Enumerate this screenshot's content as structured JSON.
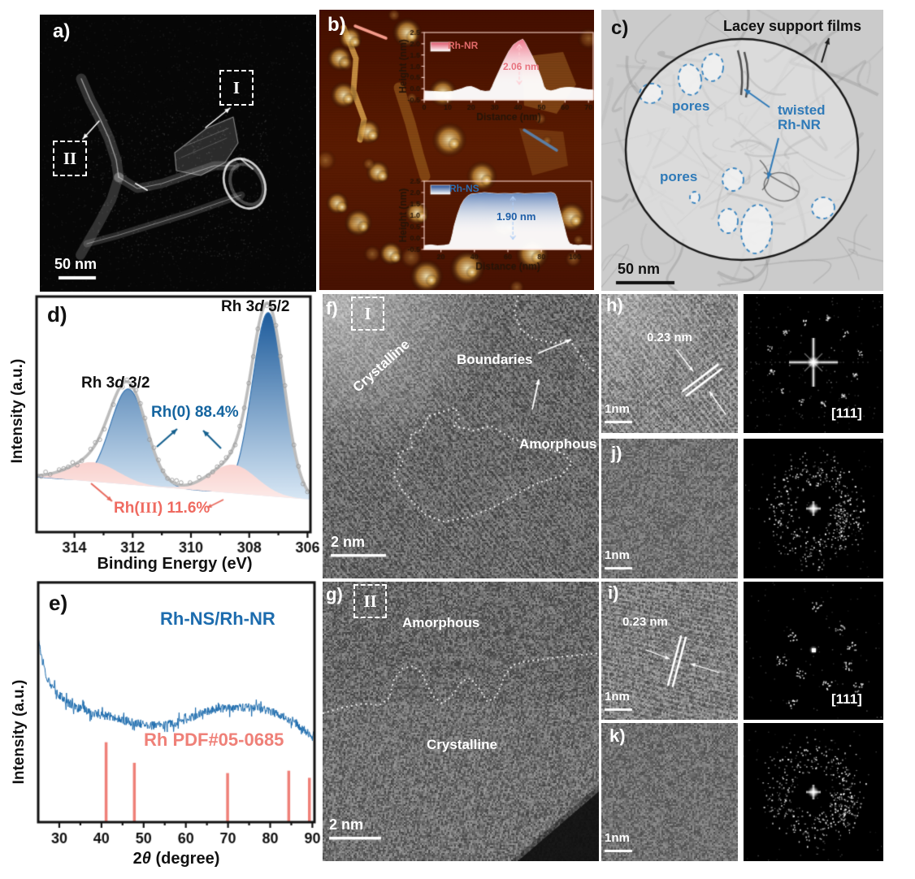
{
  "figure": {
    "background": "#ffffff",
    "description": "Multi-panel characterization figure of Rh nanosheet/nanoring structures"
  },
  "panels": {
    "a": {
      "label": "a)",
      "region_1": "I",
      "region_2": "II",
      "scalebar": "50 nm"
    },
    "b": {
      "label": "b)"
    },
    "c": {
      "label": "c)",
      "support_label": "Lacey support films",
      "pores_1": "pores",
      "pores_2": "pores",
      "twisted_line1": "twisted",
      "twisted_line2": "Rh-NR",
      "scalebar": "50 nm",
      "annotation_color": "#2f7ab8"
    },
    "d": {
      "label": "d)",
      "peak52_pre": "Rh 3",
      "peak52_it": "d",
      "peak52_post": " 5/2",
      "peak32_pre": "Rh 3",
      "peak32_it": "d",
      "peak32_post": " 3/2",
      "rh0_label": "Rh(0) 88.4%",
      "rh3_pre": "Rh(",
      "rh3_roman": "III",
      "rh3_post": ") 11.6%",
      "xlabel": "Binding Energy (eV)",
      "ylabel": "Intensity (a.u.)"
    },
    "e": {
      "label": "e)",
      "series_label": "Rh-NS/Rh-NR",
      "ref_label": "Rh PDF#05-0685",
      "xlabel_pre": "2",
      "xlabel_it": "θ",
      "xlabel_post": " (degree)",
      "ylabel": "Intensity (a.u.)"
    },
    "f": {
      "label": "f)",
      "region": "I",
      "crystalline": "Crystalline",
      "boundaries": "Boundaries",
      "amorphous": "Amorphous",
      "scalebar": "2 nm"
    },
    "g": {
      "label": "g)",
      "region": "II",
      "amorphous": "Amorphous",
      "crystalline": "Crystalline",
      "scalebar": "2 nm"
    },
    "h": {
      "label": "h)",
      "dspacing": "0.23 nm",
      "scalebar": "1nm",
      "fft_zone": "[111]"
    },
    "i": {
      "label": "i)",
      "dspacing": "0.23 nm",
      "scalebar": "1nm",
      "fft_zone": "[111]"
    },
    "j": {
      "label": "j)",
      "scalebar": "1nm"
    },
    "k": {
      "label": "k)",
      "scalebar": "1nm"
    }
  },
  "chart_data": [
    {
      "id": "afm-nr",
      "type": "area",
      "legend": "Rh-NR",
      "annotation": "2.06 nm",
      "xlabel": "Distance (nm)",
      "ylabel": "Height (nm)",
      "xlim": [
        0,
        72
      ],
      "ylim": [
        -0.5,
        2.5
      ],
      "xticks": [
        0,
        10,
        20,
        30,
        40,
        50,
        60,
        70
      ],
      "yticks": [
        -0.5,
        0.0,
        0.5,
        1.0,
        1.5,
        2.0,
        2.5
      ],
      "profile": [
        [
          0,
          -0.1
        ],
        [
          4,
          -0.12
        ],
        [
          8,
          -0.15
        ],
        [
          12,
          -0.12
        ],
        [
          16,
          0.0
        ],
        [
          18,
          0.08
        ],
        [
          20,
          0.1
        ],
        [
          22,
          0.02
        ],
        [
          24,
          -0.08
        ],
        [
          26,
          -0.12
        ],
        [
          28,
          -0.1
        ],
        [
          29,
          0.1
        ],
        [
          30,
          0.35
        ],
        [
          32,
          0.8
        ],
        [
          34,
          1.25
        ],
        [
          36,
          1.65
        ],
        [
          38,
          1.95
        ],
        [
          40,
          2.1
        ],
        [
          42,
          2.2
        ],
        [
          43,
          2.05
        ],
        [
          44,
          1.85
        ],
        [
          46,
          1.45
        ],
        [
          48,
          1.0
        ],
        [
          50,
          0.45
        ],
        [
          51,
          0.1
        ],
        [
          52,
          -0.05
        ],
        [
          54,
          -0.1
        ],
        [
          56,
          -0.05
        ],
        [
          58,
          0.02
        ],
        [
          60,
          0.05
        ],
        [
          62,
          0.06
        ],
        [
          64,
          0.04
        ],
        [
          66,
          0.02
        ],
        [
          68,
          -0.02
        ],
        [
          70,
          -0.05
        ],
        [
          72,
          -0.06
        ]
      ],
      "peak_height_nm": 2.06,
      "peak_color": "#ee5a74",
      "text_color": "#e8737f",
      "legend_color": "#e26a6a"
    },
    {
      "id": "afm-ns",
      "type": "area",
      "legend": "Rh-NS",
      "annotation": "1.90 nm",
      "xlabel": "Distance (nm)",
      "ylabel": "Height (nm)",
      "xlim": [
        10,
        110
      ],
      "ylim": [
        -0.5,
        2.5
      ],
      "xticks": [
        20,
        40,
        60,
        80,
        100
      ],
      "yticks": [
        -0.5,
        0.0,
        0.5,
        1.0,
        1.5,
        2.0,
        2.5
      ],
      "profile": [
        [
          10,
          -0.33
        ],
        [
          14,
          -0.3
        ],
        [
          18,
          -0.34
        ],
        [
          22,
          -0.32
        ],
        [
          25,
          -0.28
        ],
        [
          26,
          -0.1
        ],
        [
          27,
          0.2
        ],
        [
          28,
          0.55
        ],
        [
          30,
          1.05
        ],
        [
          32,
          1.45
        ],
        [
          34,
          1.7
        ],
        [
          36,
          1.85
        ],
        [
          38,
          1.93
        ],
        [
          42,
          1.96
        ],
        [
          46,
          2.0
        ],
        [
          50,
          1.97
        ],
        [
          54,
          1.95
        ],
        [
          58,
          1.96
        ],
        [
          62,
          1.95
        ],
        [
          66,
          1.97
        ],
        [
          70,
          1.95
        ],
        [
          74,
          1.96
        ],
        [
          78,
          1.97
        ],
        [
          82,
          1.98
        ],
        [
          86,
          2.0
        ],
        [
          88,
          1.95
        ],
        [
          89,
          1.8
        ],
        [
          90,
          1.5
        ],
        [
          92,
          0.95
        ],
        [
          94,
          0.4
        ],
        [
          95,
          0.1
        ],
        [
          96,
          -0.12
        ],
        [
          97,
          -0.25
        ],
        [
          99,
          -0.3
        ],
        [
          102,
          -0.32
        ],
        [
          105,
          -0.3
        ],
        [
          108,
          -0.32
        ],
        [
          110,
          -0.33
        ]
      ],
      "step_height_nm": 1.9,
      "peak_color": "#1c4f9e",
      "text_color": "#1f5fa8",
      "legend_color": "#2d6cae"
    },
    {
      "id": "xps",
      "type": "area-peaks",
      "xlabel": "Binding Energy (eV)",
      "ylabel": "Intensity (a.u.)",
      "x_range": [
        315.3,
        305.9
      ],
      "xticks": [
        314,
        312,
        310,
        308,
        306
      ],
      "peaks": [
        {
          "name": "Rh(0) 3d5/2",
          "center": 307.35,
          "sigma": 0.55,
          "amp": 1.0,
          "group": "Rh0"
        },
        {
          "name": "Rh(0) 3d3/2",
          "center": 312.15,
          "sigma": 0.62,
          "amp": 0.52,
          "group": "Rh0"
        },
        {
          "name": "Rh(III) 3d5/2",
          "center": 308.55,
          "sigma": 0.8,
          "amp": 0.155,
          "group": "RhIII"
        },
        {
          "name": "Rh(III) 3d3/2",
          "center": 313.35,
          "sigma": 0.85,
          "amp": 0.105,
          "group": "RhIII"
        }
      ],
      "composition": {
        "Rh0_percent": 88.4,
        "RhIII_percent": 11.6
      },
      "annotations": {
        "rh0": "Rh(0) 88.4%",
        "rhIII": "Rh(III) 11.6%",
        "peak52": "Rh 3d 5/2",
        "peak32": "Rh 3d 3/2"
      },
      "colors": {
        "Rh0": "#1b5a9b",
        "Rh0_light": "#ddebf7",
        "RhIII": "#ed6a60",
        "RhIII_light": "#fdeeec",
        "envelope": "#bcbcbc",
        "outline": "#2f6fae"
      }
    },
    {
      "id": "xrd",
      "type": "line+sticks",
      "xlabel": "2θ (degree)",
      "ylabel": "Intensity (a.u.)",
      "x_range": [
        25,
        90.5
      ],
      "xticks": [
        30,
        40,
        50,
        60,
        70,
        80,
        90
      ],
      "series_label": "Rh-NS/Rh-NR",
      "ref_label": "Rh PDF#05-0685",
      "curve": [
        [
          25,
          0.78
        ],
        [
          26,
          0.67
        ],
        [
          27,
          0.61
        ],
        [
          28,
          0.575
        ],
        [
          29,
          0.55
        ],
        [
          30,
          0.53
        ],
        [
          31,
          0.515
        ],
        [
          32,
          0.5
        ],
        [
          33,
          0.49
        ],
        [
          34,
          0.48
        ],
        [
          35,
          0.472
        ],
        [
          36,
          0.47
        ],
        [
          37,
          0.462
        ],
        [
          38,
          0.455
        ],
        [
          39,
          0.45
        ],
        [
          40,
          0.445
        ],
        [
          41,
          0.445
        ],
        [
          42,
          0.44
        ],
        [
          43,
          0.435
        ],
        [
          44,
          0.43
        ],
        [
          45,
          0.425
        ],
        [
          46,
          0.422
        ],
        [
          47,
          0.418
        ],
        [
          48,
          0.413
        ],
        [
          49,
          0.41
        ],
        [
          50,
          0.408
        ],
        [
          51,
          0.405
        ],
        [
          52,
          0.403
        ],
        [
          53,
          0.403
        ],
        [
          54,
          0.404
        ],
        [
          55,
          0.406
        ],
        [
          56,
          0.41
        ],
        [
          57,
          0.413
        ],
        [
          58,
          0.417
        ],
        [
          59,
          0.422
        ],
        [
          60,
          0.428
        ],
        [
          61,
          0.434
        ],
        [
          62,
          0.442
        ],
        [
          63,
          0.45
        ],
        [
          64,
          0.456
        ],
        [
          65,
          0.462
        ],
        [
          66,
          0.468
        ],
        [
          67,
          0.472
        ],
        [
          68,
          0.474
        ],
        [
          69,
          0.475
        ],
        [
          70,
          0.476
        ],
        [
          71,
          0.476
        ],
        [
          72,
          0.476
        ],
        [
          73,
          0.478
        ],
        [
          74,
          0.478
        ],
        [
          75,
          0.48
        ],
        [
          76,
          0.48
        ],
        [
          77,
          0.476
        ],
        [
          78,
          0.472
        ],
        [
          79,
          0.468
        ],
        [
          80,
          0.462
        ],
        [
          81,
          0.456
        ],
        [
          82,
          0.45
        ],
        [
          83,
          0.44
        ],
        [
          84,
          0.434
        ],
        [
          85,
          0.425
        ],
        [
          86,
          0.415
        ],
        [
          87,
          0.4
        ],
        [
          88,
          0.385
        ],
        [
          89,
          0.37
        ],
        [
          90,
          0.358
        ],
        [
          90.5,
          0.352
        ]
      ],
      "noise_amplitude": 0.018,
      "sticks": [
        {
          "x": 41.1,
          "h": 1.0
        },
        {
          "x": 47.8,
          "h": 0.74
        },
        {
          "x": 69.9,
          "h": 0.61
        },
        {
          "x": 84.4,
          "h": 0.64
        },
        {
          "x": 89.3,
          "h": 0.55
        }
      ],
      "stick_max_fraction": 0.33,
      "colors": {
        "series": "#1d6cae",
        "ref": "#ef8078"
      }
    }
  ]
}
